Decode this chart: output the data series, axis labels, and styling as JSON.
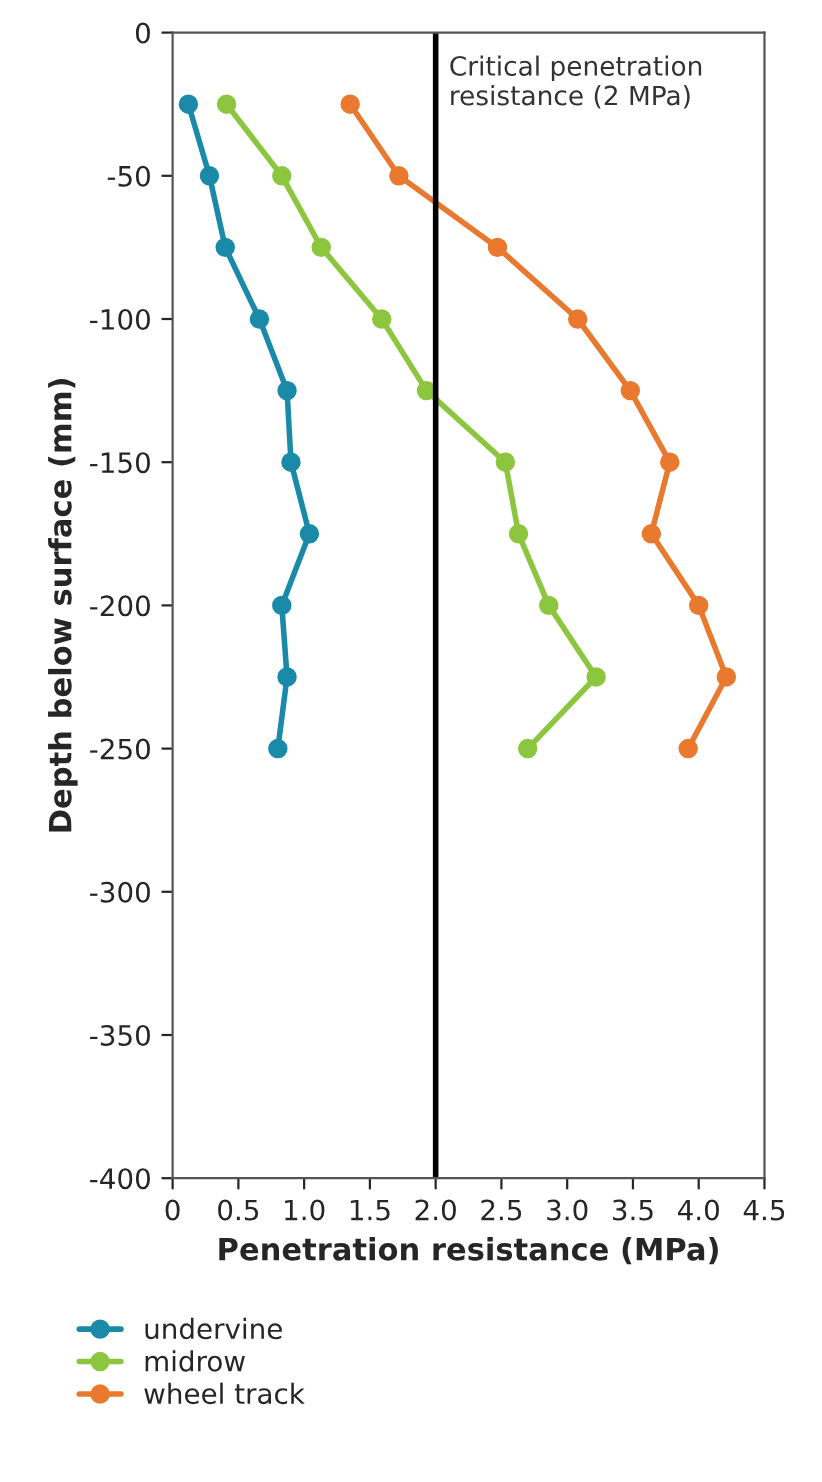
{
  "chart_data": {
    "type": "line",
    "xlabel": "Penetration resistance (MPa)",
    "ylabel": "Depth below surface (mm)",
    "series": [
      {
        "name": "undervine",
        "color": "#1a8aa8",
        "x": [
          0.12,
          0.28,
          0.4,
          0.66,
          0.87,
          0.9,
          1.04,
          0.83,
          0.87,
          0.8
        ],
        "values": [
          -25,
          -50,
          -75,
          -100,
          -125,
          -150,
          -175,
          -200,
          -225,
          -250
        ]
      },
      {
        "name": "midrow",
        "color": "#8cc63f",
        "x": [
          0.41,
          0.83,
          1.13,
          1.59,
          1.93,
          2.53,
          2.63,
          2.86,
          3.22,
          2.7
        ],
        "values": [
          -25,
          -50,
          -75,
          -100,
          -125,
          -150,
          -175,
          -200,
          -225,
          -250
        ]
      },
      {
        "name": "wheel track",
        "color": "#e8792e",
        "x": [
          1.35,
          1.72,
          2.47,
          3.08,
          3.48,
          3.78,
          3.64,
          4.0,
          4.21,
          3.92
        ],
        "values": [
          -25,
          -50,
          -75,
          -100,
          -125,
          -150,
          -175,
          -200,
          -225,
          -250
        ]
      }
    ],
    "xlim": [
      0,
      4.5
    ],
    "xticks": [
      0,
      0.5,
      {
        "value": 1,
        "label": "1.0"
      },
      1.5,
      {
        "value": 2,
        "label": "2.0"
      },
      2.5,
      {
        "value": 3,
        "label": "3.0"
      },
      3.5,
      {
        "value": 4,
        "label": "4.0"
      },
      4.5
    ],
    "ylim": [
      -400,
      0
    ],
    "yticks": [
      -400,
      -350,
      -300,
      -250,
      -200,
      -150,
      -100,
      -50,
      0
    ],
    "ref_lines": [
      {
        "axis": "x",
        "value": 2,
        "label": "Critical penetration\nresistance (2 MPa)",
        "color": "#000000"
      }
    ],
    "marker": "circle",
    "line_style": "solid",
    "grid": false,
    "legend": "bottom left"
  }
}
